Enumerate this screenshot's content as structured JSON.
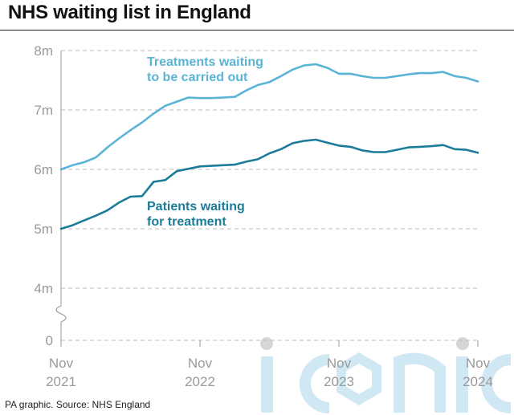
{
  "title": "NHS waiting list in England",
  "source": "PA graphic. Source: NHS England",
  "watermark": "iconic",
  "colors": {
    "treatments": "#5ab4d6",
    "patients": "#1b7c9a",
    "grid": "#bdbdbd",
    "axis": "#9a9a9a",
    "watermark": "#cfe8f3"
  },
  "chart_data": {
    "type": "line",
    "title": "NHS waiting list in England",
    "xlabel": "",
    "ylabel": "",
    "ylim": [
      4,
      8
    ],
    "y_axis_break": true,
    "y_ticks": [
      {
        "value": 8,
        "label": "8m"
      },
      {
        "value": 7,
        "label": "7m"
      },
      {
        "value": 6,
        "label": "6m"
      },
      {
        "value": 5,
        "label": "5m"
      },
      {
        "value": 4,
        "label": "4m"
      }
    ],
    "y_zero_label": "0",
    "x_ticks": [
      {
        "index": 0,
        "line1": "Nov",
        "line2": "2021"
      },
      {
        "index": 12,
        "line1": "Nov",
        "line2": "2022"
      },
      {
        "index": 24,
        "line1": "Nov",
        "line2": "2023"
      },
      {
        "index": 36,
        "line1": "Nov",
        "line2": "2024"
      }
    ],
    "x_range": [
      0,
      36
    ],
    "grid": true,
    "series": [
      {
        "name": "Treatments waiting to be carried out",
        "label_line1": "Treatments waiting",
        "label_line2": "to be carried out",
        "color_key": "treatments",
        "values": [
          6.0,
          6.07,
          6.12,
          6.2,
          6.37,
          6.52,
          6.66,
          6.79,
          6.94,
          7.07,
          7.14,
          7.21,
          7.2,
          7.2,
          7.21,
          7.22,
          7.33,
          7.42,
          7.47,
          7.57,
          7.68,
          7.75,
          7.77,
          7.71,
          7.61,
          7.61,
          7.57,
          7.54,
          7.54,
          7.57,
          7.6,
          7.62,
          7.62,
          7.64,
          7.57,
          7.54,
          7.48
        ]
      },
      {
        "name": "Patients waiting for treatment",
        "label_line1": "Patients waiting",
        "label_line2": "for treatment",
        "color_key": "patients",
        "values": [
          5.0,
          5.06,
          5.14,
          5.22,
          5.31,
          5.44,
          5.54,
          5.55,
          5.79,
          5.82,
          5.97,
          6.01,
          6.05,
          6.06,
          6.07,
          6.08,
          6.13,
          6.17,
          6.27,
          6.34,
          6.44,
          6.48,
          6.5,
          6.45,
          6.4,
          6.38,
          6.32,
          6.29,
          6.29,
          6.33,
          6.37,
          6.38,
          6.39,
          6.41,
          6.34,
          6.33,
          6.28
        ]
      }
    ]
  }
}
